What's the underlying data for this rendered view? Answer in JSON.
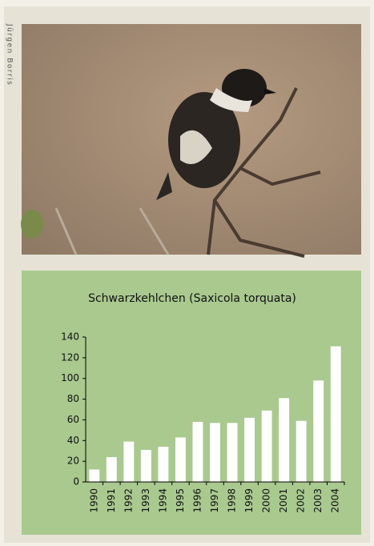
{
  "credit": "Jürgen Borris",
  "chart_data": {
    "type": "bar",
    "title": "Schwarzkehlchen (Saxicola torquata)",
    "categories": [
      "1990",
      "1991",
      "1992",
      "1993",
      "1994",
      "1995",
      "1996",
      "1997",
      "1998",
      "1999",
      "2000",
      "2001",
      "2002",
      "2003",
      "2004"
    ],
    "values": [
      12,
      24,
      39,
      31,
      34,
      43,
      58,
      57,
      57,
      62,
      69,
      81,
      59,
      98,
      131
    ],
    "color": "#ffffff",
    "ylim": [
      0,
      140
    ],
    "yticks": [
      0,
      20,
      40,
      60,
      80,
      100,
      120,
      140
    ],
    "grid": false
  }
}
